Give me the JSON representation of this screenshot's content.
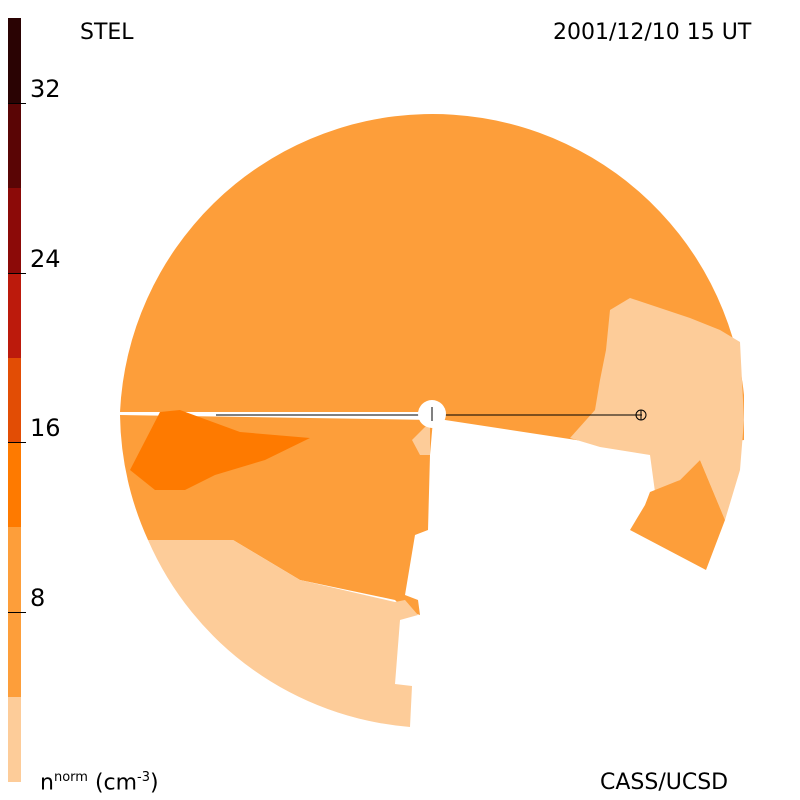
{
  "header": {
    "left_label": "STEL",
    "right_label": "2001/12/10 15 UT"
  },
  "footer": {
    "units_base": "n",
    "units_sup": "norm",
    "units_rest": "(cm",
    "units_exp": "-3",
    "units_close": ")",
    "credit": "CASS/UCSD"
  },
  "colorbar": {
    "min": 0,
    "max": 36,
    "segments": [
      {
        "from": 0,
        "to": 4,
        "color": "#fdcc99"
      },
      {
        "from": 4,
        "to": 12,
        "color": "#fd9e3a"
      },
      {
        "from": 12,
        "to": 16,
        "color": "#fe7a00"
      },
      {
        "from": 16,
        "to": 20,
        "color": "#e24d05"
      },
      {
        "from": 20,
        "to": 24,
        "color": "#bc1a0c"
      },
      {
        "from": 24,
        "to": 28,
        "color": "#8c0a08"
      },
      {
        "from": 28,
        "to": 32,
        "color": "#5a0505"
      },
      {
        "from": 32,
        "to": 36,
        "color": "#2a0303"
      }
    ],
    "ticks": [
      {
        "value": 8,
        "label": "8"
      },
      {
        "value": 16,
        "label": "16"
      },
      {
        "value": 24,
        "label": "24"
      },
      {
        "value": 32,
        "label": "32"
      }
    ]
  },
  "map": {
    "colors": {
      "light": "#fdcc99",
      "mid": "#fd9e3a",
      "dark": "#fe7a00",
      "sun": "#ffffff",
      "line": "#000000"
    }
  }
}
